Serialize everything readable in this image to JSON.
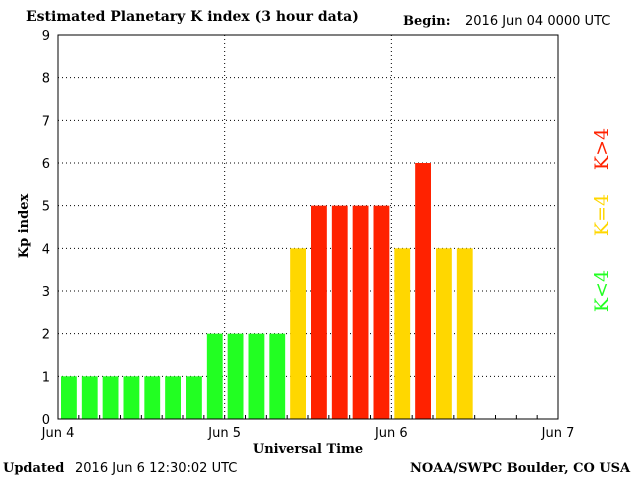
{
  "header": {
    "title": "Estimated Planetary K index (3 hour data)",
    "begin_label": "Begin:",
    "begin_value": "2016 Jun 04 0000 UTC"
  },
  "footer": {
    "updated_label": "Updated",
    "updated_value": "2016 Jun  6 12:30:02 UTC",
    "credit": "NOAA/SWPC Boulder, CO USA"
  },
  "legend": {
    "gt": "K>4",
    "eq": "K=4",
    "lt": "K<4"
  },
  "colors": {
    "low": "#22ff22",
    "moderate": "#ffd700",
    "high": "#ff2200",
    "grid": "#000000"
  },
  "chart_data": {
    "type": "bar",
    "title": "Estimated Planetary K index (3 hour data)",
    "xlabel": "Universal Time",
    "ylabel": "Kp index",
    "ylim": [
      0,
      9
    ],
    "yticks": [
      "0",
      "1",
      "2",
      "3",
      "4",
      "5",
      "6",
      "7",
      "8",
      "9"
    ],
    "xticks": [
      "Jun 4",
      "Jun 5",
      "Jun 6",
      "Jun 7"
    ],
    "slots_total": 24,
    "grid": "dotted",
    "legend_placement": "right",
    "values": [
      1,
      1,
      1,
      1,
      1,
      1,
      1,
      2,
      2,
      2,
      2,
      4,
      5,
      5,
      5,
      5,
      4,
      6,
      4,
      4
    ]
  }
}
